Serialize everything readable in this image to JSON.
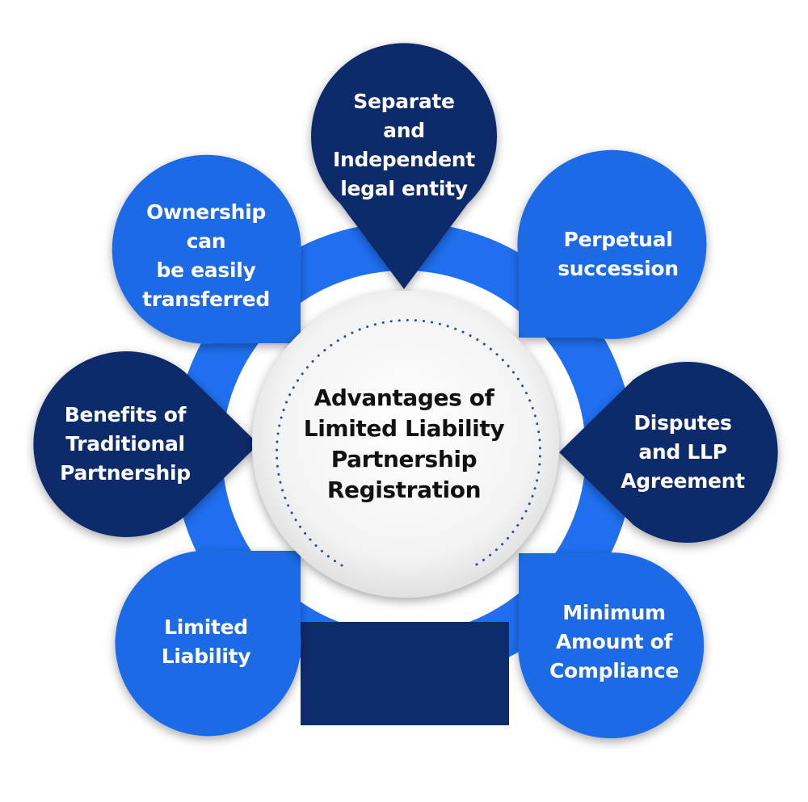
{
  "colors": {
    "dark_navy": "#0e2b6b",
    "bright_blue": "#1c6be6",
    "ring_blue": "#1f6ff0",
    "center_light": "#eeeeee",
    "dot_color": "#2a4f8a"
  },
  "center": {
    "label": "Advantages of\nLimited Liability\nPartnership\nRegistration"
  },
  "nodes": {
    "top": "Separate\nand\nIndependent\nlegal entity",
    "upper_left": "Ownership\ncan\nbe easily\ntransferred",
    "upper_right": "Perpetual\nsuccession",
    "mid_left": "Benefits of\nTraditional\nPartnership",
    "mid_right": "Disputes\nand LLP\nAgreement",
    "lower_left": "Limited\nLiability",
    "lower_right": "Minimum\nAmount of\nCompliance"
  }
}
